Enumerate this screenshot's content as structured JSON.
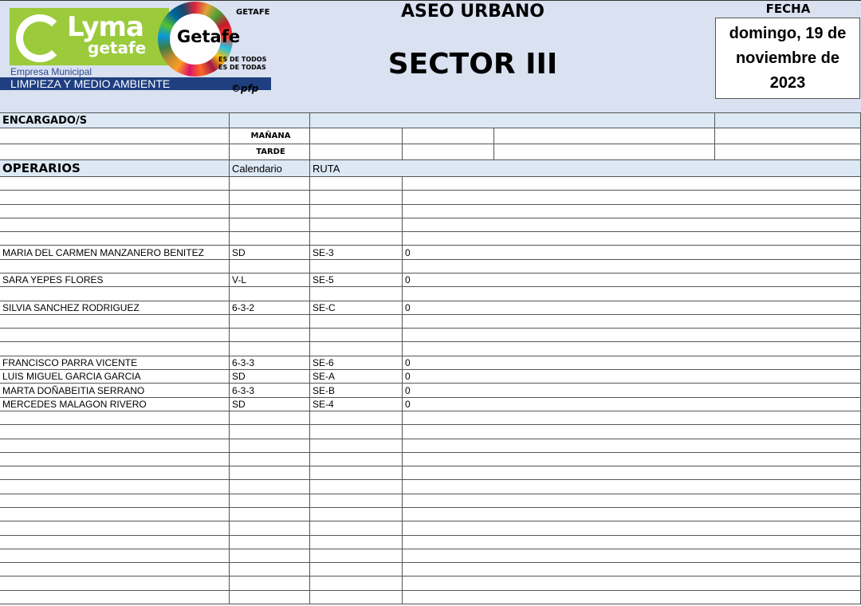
{
  "logo": {
    "brand": "Lyma",
    "brand_sub": "getafe",
    "empresa": "Empresa Municipal",
    "division": "LIMPIEZA Y MEDIO AMBIENTE",
    "getafe": "Getafe",
    "ayuntamiento": "GETAFE",
    "slogan1": "ES DE TODOS",
    "slogan2": "ES DE TODAS",
    "copyright": "©pfp"
  },
  "header": {
    "title": "ASEO URBANO",
    "sector": "SECTOR III",
    "fecha_label": "FECHA",
    "fecha": "domingo, 19 de noviembre de 2023"
  },
  "encargados": {
    "label": "ENCARGADO/S",
    "manana": "MAÑANA",
    "tarde": "TARDE"
  },
  "operarios": {
    "label": "OPERARIOS",
    "col_calendario": "Calendario",
    "col_ruta": "RUTA",
    "rows": [
      {},
      {},
      {},
      {},
      {},
      {
        "name": "MARIA DEL CARMEN MANZANERO BENITEZ",
        "cal": "SD",
        "ruta": "SE-3",
        "val": "0"
      },
      {},
      {
        "name": "SARA YEPES FLORES",
        "cal": "V-L",
        "ruta": "SE-5",
        "val": "0"
      },
      {},
      {
        "name": "SILVIA SANCHEZ RODRIGUEZ",
        "cal": "6-3-2",
        "ruta": "SE-C",
        "val": "0"
      },
      {},
      {},
      {},
      {
        "name": "FRANCISCO PARRA VICENTE",
        "cal": "6-3-3",
        "ruta": "SE-6",
        "val": "0"
      },
      {
        "name": "LUIS MIGUEL GARCIA GARCIA",
        "cal": "SD",
        "ruta": "SE-A",
        "val": "0"
      },
      {
        "name": "MARTA DOÑABEITIA SERRANO",
        "cal": "6-3-3",
        "ruta": "SE-B",
        "val": "0"
      },
      {
        "name": "MERCEDES MALAGON RIVERO",
        "cal": "SD",
        "ruta": "SE-4",
        "val": "0"
      },
      {},
      {},
      {},
      {},
      {},
      {},
      {},
      {},
      {},
      {},
      {},
      {},
      {},
      {}
    ]
  },
  "colors": {
    "header_bg": "#dae1f1",
    "lyma_green": "#9bcb3b",
    "brand_blue": "#1f3f80",
    "label_bg": "#dce9f5"
  }
}
